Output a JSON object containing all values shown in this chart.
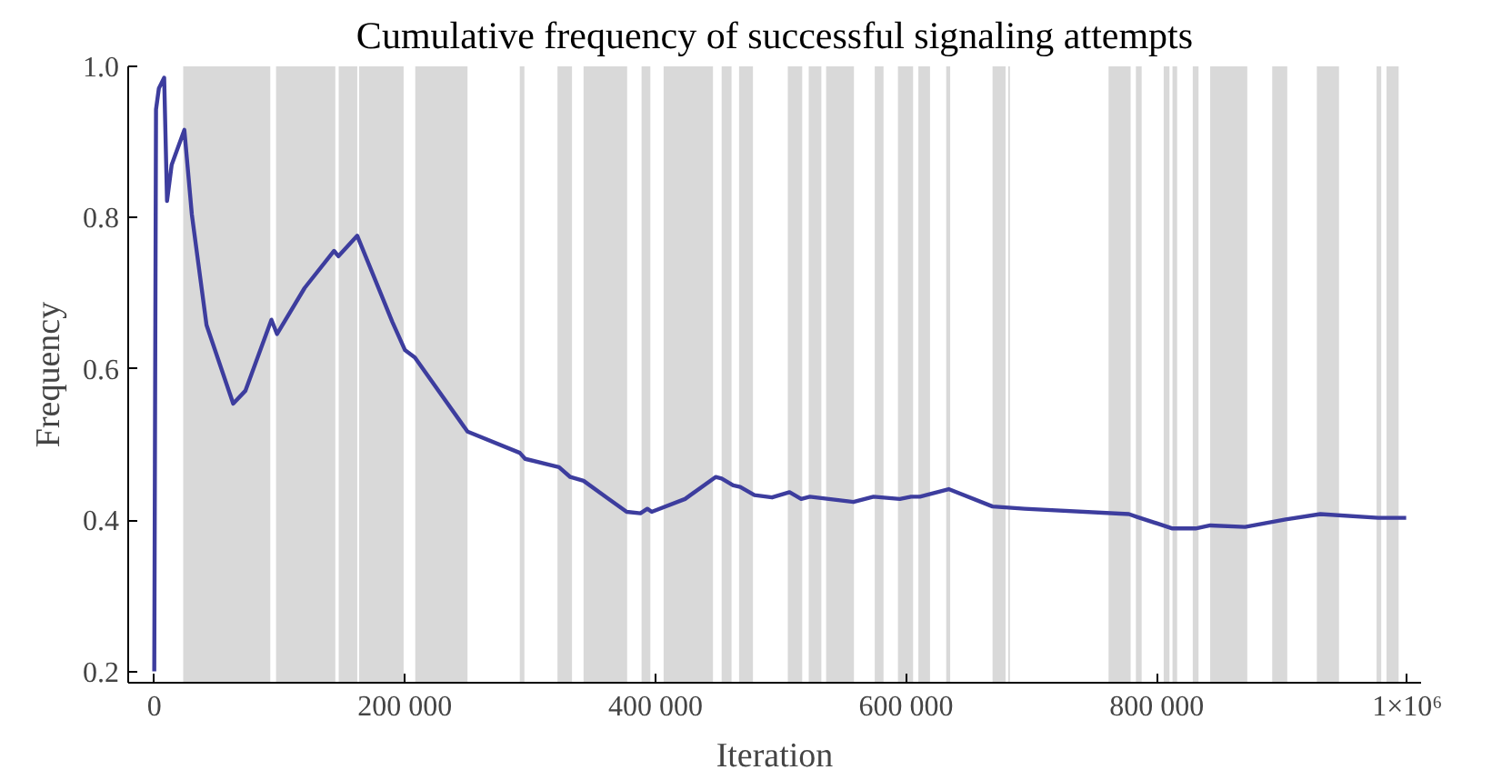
{
  "chart_data": {
    "type": "line",
    "title": "Cumulative frequency of successful signaling attempts",
    "xlabel": "Iteration",
    "ylabel": "Frequency",
    "xlim": [
      -20800,
      1011000
    ],
    "ylim": [
      0.185,
      1.0
    ],
    "xticks": [
      0,
      {
        "value": 200000,
        "label": "200 000"
      },
      {
        "value": 400000,
        "label": "400 000"
      },
      {
        "value": 600000,
        "label": "600 000"
      },
      {
        "value": 800000,
        "label": "800 000"
      },
      {
        "value": 1000000,
        "label": "1×10⁶"
      }
    ],
    "yticks": [
      {
        "value": 0.2,
        "label": "0.2"
      },
      {
        "value": 0.4,
        "label": "0.4"
      },
      {
        "value": 0.6,
        "label": "0.6"
      },
      {
        "value": 0.8,
        "label": "0.8"
      },
      {
        "value": 1.0,
        "label": "1.0"
      }
    ],
    "grid": false,
    "series": [
      {
        "color": "#3d3d9e",
        "x": [
          0,
          1400,
          3700,
          7900,
          10200,
          13900,
          24000,
          30000,
          41700,
          63000,
          72700,
          93500,
          98000,
          120000,
          143500,
          147000,
          162000,
          190000,
          200000,
          208000,
          250000,
          291700,
          296000,
          323000,
          332000,
          342600,
          361000,
          377000,
          388000,
          393500,
          397000,
          423600,
          448000,
          452800,
          462000,
          467600,
          479000,
          493000,
          507000,
          516300,
          523200,
          558000,
          574000,
          595000,
          604000,
          611000,
          634000,
          669000,
          694500,
          777800,
          784800,
          812600,
          831000,
          842700,
          870500,
          902900,
          930600,
          976900,
          999100
        ],
        "values": [
          0.2,
          0.943,
          0.971,
          0.985,
          0.822,
          0.87,
          0.916,
          0.804,
          0.658,
          0.554,
          0.571,
          0.665,
          0.646,
          0.707,
          0.756,
          0.749,
          0.776,
          0.662,
          0.625,
          0.615,
          0.517,
          0.489,
          0.481,
          0.47,
          0.457,
          0.452,
          0.43,
          0.411,
          0.409,
          0.415,
          0.411,
          0.428,
          0.457,
          0.455,
          0.446,
          0.444,
          0.433,
          0.43,
          0.437,
          0.428,
          0.431,
          0.424,
          0.431,
          0.428,
          0.431,
          0.431,
          0.441,
          0.418,
          0.415,
          0.408,
          0.404,
          0.389,
          0.389,
          0.393,
          0.391,
          0.401,
          0.408,
          0.403,
          0.403
        ]
      }
    ],
    "bands": [
      {
        "axis": "x",
        "from": 23100,
        "to": 92600,
        "color": "#d9d9d9"
      },
      {
        "axis": "x",
        "from": 97200,
        "to": 144500,
        "color": "#d9d9d9"
      },
      {
        "axis": "x",
        "from": 147200,
        "to": 162000,
        "color": "#d9d9d9"
      },
      {
        "axis": "x",
        "from": 163500,
        "to": 199000,
        "color": "#d9d9d9"
      },
      {
        "axis": "x",
        "from": 208300,
        "to": 250000,
        "color": "#d9d9d9"
      },
      {
        "axis": "x",
        "from": 291700,
        "to": 295400,
        "color": "#d9d9d9"
      },
      {
        "axis": "x",
        "from": 321800,
        "to": 333400,
        "color": "#d9d9d9"
      },
      {
        "axis": "x",
        "from": 342600,
        "to": 377400,
        "color": "#d9d9d9"
      },
      {
        "axis": "x",
        "from": 388900,
        "to": 395900,
        "color": "#d9d9d9"
      },
      {
        "axis": "x",
        "from": 406500,
        "to": 445900,
        "color": "#d9d9d9"
      },
      {
        "axis": "x",
        "from": 452800,
        "to": 460700,
        "color": "#d9d9d9"
      },
      {
        "axis": "x",
        "from": 466700,
        "to": 477800,
        "color": "#d9d9d9"
      },
      {
        "axis": "x",
        "from": 505600,
        "to": 517100,
        "color": "#d9d9d9"
      },
      {
        "axis": "x",
        "from": 522300,
        "to": 532400,
        "color": "#d9d9d9"
      },
      {
        "axis": "x",
        "from": 536200,
        "to": 558400,
        "color": "#d9d9d9"
      },
      {
        "axis": "x",
        "from": 575000,
        "to": 582000,
        "color": "#d9d9d9"
      },
      {
        "axis": "x",
        "from": 593500,
        "to": 605600,
        "color": "#d9d9d9"
      },
      {
        "axis": "x",
        "from": 609800,
        "to": 619100,
        "color": "#d9d9d9"
      },
      {
        "axis": "x",
        "from": 632000,
        "to": 635200,
        "color": "#d9d9d9"
      },
      {
        "axis": "x",
        "from": 669000,
        "to": 679400,
        "color": "#d9d9d9"
      },
      {
        "axis": "x",
        "from": 681500,
        "to": 682900,
        "color": "#d9d9d9"
      },
      {
        "axis": "x",
        "from": 761600,
        "to": 779200,
        "color": "#d9d9d9"
      },
      {
        "axis": "x",
        "from": 783400,
        "to": 788000,
        "color": "#d9d9d9"
      },
      {
        "axis": "x",
        "from": 805600,
        "to": 810200,
        "color": "#d9d9d9"
      },
      {
        "axis": "x",
        "from": 812600,
        "to": 816300,
        "color": "#d9d9d9"
      },
      {
        "axis": "x",
        "from": 828800,
        "to": 833400,
        "color": "#d9d9d9"
      },
      {
        "axis": "x",
        "from": 842700,
        "to": 872300,
        "color": "#d9d9d9"
      },
      {
        "axis": "x",
        "from": 892200,
        "to": 904200,
        "color": "#d9d9d9"
      },
      {
        "axis": "x",
        "from": 927800,
        "to": 945500,
        "color": "#d9d9d9"
      },
      {
        "axis": "x",
        "from": 975500,
        "to": 979200,
        "color": "#d9d9d9"
      },
      {
        "axis": "x",
        "from": 983400,
        "to": 993100,
        "color": "#d9d9d9"
      }
    ]
  }
}
